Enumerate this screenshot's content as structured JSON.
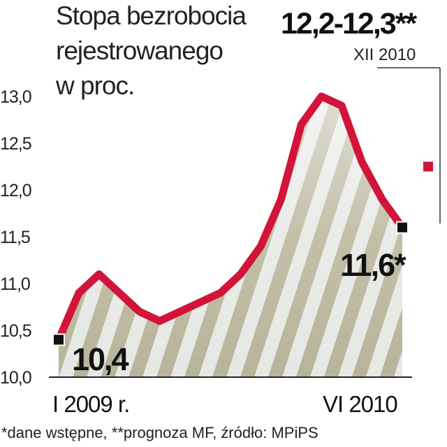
{
  "chart_data": {
    "type": "line",
    "title": "Stopa bezrobocia rejestrowanego w proc.",
    "title_lines": [
      "Stopa bezrobocia",
      "rejestrowanego",
      "w proc."
    ],
    "ylim": [
      10.0,
      13.0
    ],
    "y_ticks": [
      "10,0",
      "10,5",
      "11,0",
      "11,5",
      "12,0",
      "12,5",
      "13,0"
    ],
    "y_tick_values": [
      10.0,
      10.5,
      11.0,
      11.5,
      12.0,
      12.5,
      13.0
    ],
    "x_axis": {
      "start_label": "I 2009 r.",
      "end_label": "VI 2010"
    },
    "series": [
      {
        "months": [
          "I 2009",
          "II 2009",
          "III 2009",
          "IV 2009",
          "V 2009",
          "VI 2009",
          "VII 2009",
          "VIII 2009",
          "IX 2009",
          "X 2009",
          "XI 2009",
          "XII 2009",
          "I 2010",
          "II 2010",
          "III 2010",
          "IV 2010",
          "V 2010",
          "VI 2010"
        ],
        "values": [
          10.4,
          10.9,
          11.1,
          10.9,
          10.7,
          10.6,
          10.7,
          10.8,
          10.9,
          11.1,
          11.4,
          11.9,
          12.7,
          13.0,
          12.9,
          12.3,
          11.9,
          11.6
        ],
        "color": "#d2143a"
      }
    ],
    "area_fill_colors": [
      "#b8b49a",
      "#e6e8e4"
    ],
    "markers": [
      {
        "month": "I 2009",
        "value": 10.4,
        "label": "10,4"
      },
      {
        "month": "VI 2010",
        "value": 11.6,
        "label": "11,6*"
      }
    ],
    "forecast": {
      "value_label": "12,2-12,3**",
      "date_label": "XII 2010",
      "value": 12.25,
      "color": "#d2143a"
    },
    "footnote": "*dane wstępne, **prognoza MF,  źródło: MPiPS"
  }
}
